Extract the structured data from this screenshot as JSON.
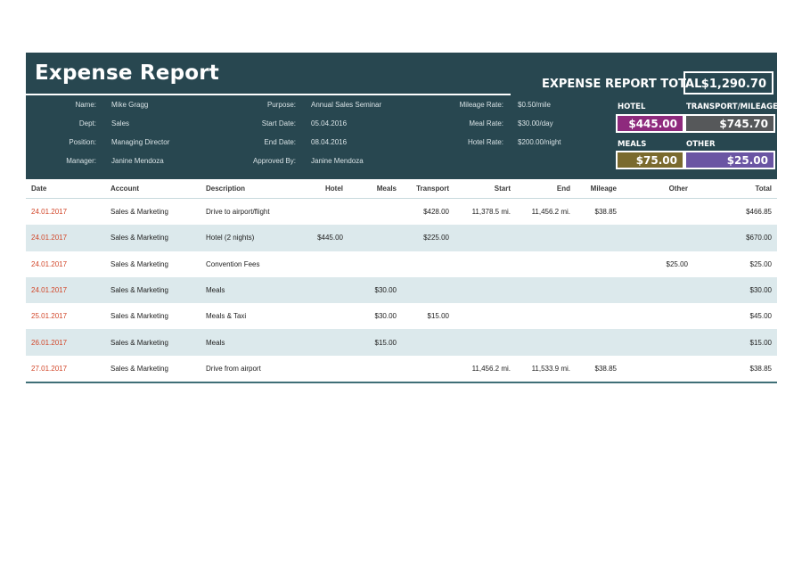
{
  "report": {
    "title": "Expense Report",
    "total_label": "EXPENSE REPORT TOTAL",
    "total_value": "$1,290.70"
  },
  "info": {
    "name_label": "Name:",
    "name_value": "Mike Gragg",
    "dept_label": "Dept:",
    "dept_value": "Sales",
    "position_label": "Position:",
    "position_value": "Managing Director",
    "manager_label": "Manager:",
    "manager_value": "Janine Mendoza",
    "purpose_label": "Purpose:",
    "purpose_value": "Annual Sales Seminar",
    "start_label": "Start Date:",
    "start_value": "05.04.2016",
    "end_label": "End Date:",
    "end_value": "08.04.2016",
    "approved_label": "Approved By:",
    "approved_value": "Janine Mendoza",
    "mileage_label": "Mileage Rate:",
    "mileage_value": "$0.50/mile",
    "meal_label": "Meal Rate:",
    "meal_value": "$30.00/day",
    "hotel_label": "Hotel Rate:",
    "hotel_value": "$200.00/night"
  },
  "categories": {
    "hotel_label": "HOTEL",
    "hotel_value": "$445.00",
    "hotel_color": "#8e2a7d",
    "transport_label": "TRANSPORT/MILEAGE",
    "transport_value": "$745.70",
    "transport_color": "#56585a",
    "meals_label": "MEALS",
    "meals_value": "$75.00",
    "meals_color": "#7a6a2e",
    "other_label": "OTHER",
    "other_value": "$25.00",
    "other_color": "#6a55a3"
  },
  "table": {
    "headers": {
      "date": "Date",
      "account": "Account",
      "description": "Description",
      "hotel": "Hotel",
      "meals": "Meals",
      "transport": "Transport",
      "start": "Start",
      "end": "End",
      "mileage": "Mileage",
      "other": "Other",
      "total": "Total"
    },
    "rows": [
      {
        "date": "24.01.2017",
        "account": "Sales & Marketing",
        "description": "Drive to airport/flight",
        "hotel": "",
        "meals": "",
        "transport": "$428.00",
        "start": "11,378.5  mi.",
        "end": "11,456.2  mi.",
        "mileage": "$38.85",
        "other": "",
        "total": "$466.85"
      },
      {
        "date": "24.01.2017",
        "account": "Sales & Marketing",
        "description": "Hotel (2 nights)",
        "hotel": "$445.00",
        "meals": "",
        "transport": "$225.00",
        "start": "",
        "end": "",
        "mileage": "",
        "other": "",
        "total": "$670.00"
      },
      {
        "date": "24.01.2017",
        "account": "Sales & Marketing",
        "description": "Convention Fees",
        "hotel": "",
        "meals": "",
        "transport": "",
        "start": "",
        "end": "",
        "mileage": "",
        "other": "$25.00",
        "total": "$25.00"
      },
      {
        "date": "24.01.2017",
        "account": "Sales & Marketing",
        "description": "Meals",
        "hotel": "",
        "meals": "$30.00",
        "transport": "",
        "start": "",
        "end": "",
        "mileage": "",
        "other": "",
        "total": "$30.00"
      },
      {
        "date": "25.01.2017",
        "account": "Sales & Marketing",
        "description": "Meals & Taxi",
        "hotel": "",
        "meals": "$30.00",
        "transport": "$15.00",
        "start": "",
        "end": "",
        "mileage": "",
        "other": "",
        "total": "$45.00"
      },
      {
        "date": "26.01.2017",
        "account": "Sales & Marketing",
        "description": "Meals",
        "hotel": "",
        "meals": "$15.00",
        "transport": "",
        "start": "",
        "end": "",
        "mileage": "",
        "other": "",
        "total": "$15.00"
      },
      {
        "date": "27.01.2017",
        "account": "Sales & Marketing",
        "description": "Drive from airport",
        "hotel": "",
        "meals": "",
        "transport": "",
        "start": "11,456.2  mi.",
        "end": "11,533.9  mi.",
        "mileage": "$38.85",
        "other": "",
        "total": "$38.85"
      }
    ]
  }
}
